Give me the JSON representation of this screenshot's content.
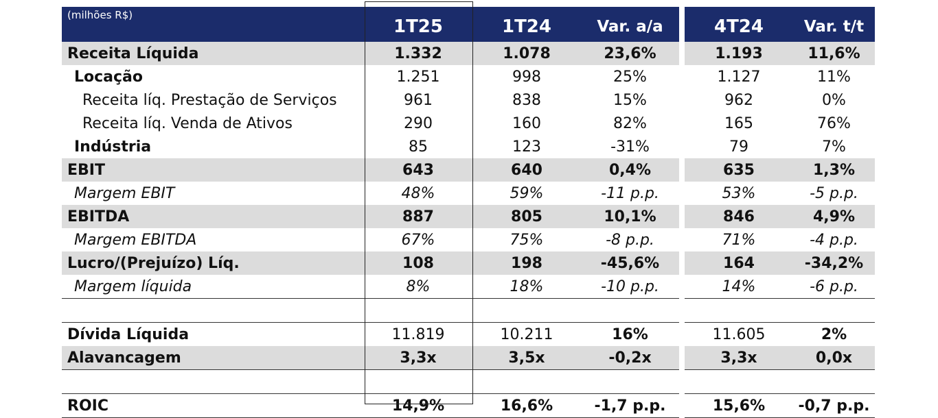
{
  "header": {
    "unit": "(milhões R$)",
    "col1": "1T25",
    "col2": "1T24",
    "col3": "Var. a/a",
    "col4": "4T24",
    "col5": "Var. t/t"
  },
  "rows": [
    {
      "label": "Receita Líquida",
      "v": [
        "1.332",
        "1.078",
        "23,6%",
        "1.193",
        "11,6%"
      ]
    },
    {
      "label": "Locação",
      "v": [
        "1.251",
        "998",
        "25%",
        "1.127",
        "11%"
      ]
    },
    {
      "label": "Receita líq. Prestação de Serviços",
      "v": [
        "961",
        "838",
        "15%",
        "962",
        "0%"
      ]
    },
    {
      "label": "Receita líq. Venda de Ativos",
      "v": [
        "290",
        "160",
        "82%",
        "165",
        "76%"
      ]
    },
    {
      "label": "Indústria",
      "v": [
        "85",
        "123",
        "-31%",
        "79",
        "7%"
      ]
    },
    {
      "label": "EBIT",
      "v": [
        "643",
        "640",
        "0,4%",
        "635",
        "1,3%"
      ]
    },
    {
      "label": "Margem EBIT",
      "v": [
        "48%",
        "59%",
        "-11 p.p.",
        "53%",
        "-5 p.p."
      ]
    },
    {
      "label": "EBITDA",
      "v": [
        "887",
        "805",
        "10,1%",
        "846",
        "4,9%"
      ]
    },
    {
      "label": "Margem EBITDA",
      "v": [
        "67%",
        "75%",
        "-8 p.p.",
        "71%",
        "-4 p.p."
      ]
    },
    {
      "label": "Lucro/(Prejuízo) Líq.",
      "v": [
        "108",
        "198",
        "-45,6%",
        "164",
        "-34,2%"
      ]
    },
    {
      "label": "Margem líquida",
      "v": [
        "8%",
        "18%",
        "-10 p.p.",
        "14%",
        "-6 p.p."
      ]
    },
    {
      "label": "Dívida Líquida",
      "v": [
        "11.819",
        "10.211",
        "16%",
        "11.605",
        "2%"
      ]
    },
    {
      "label": "Alavancagem",
      "v": [
        "3,3x",
        "3,5x",
        "-0,2x",
        "3,3x",
        "0,0x"
      ]
    },
    {
      "label": "ROIC",
      "v": [
        "14,9%",
        "16,6%",
        "-1,7 p.p.",
        "15,6%",
        "-0,7 p.p."
      ]
    }
  ]
}
